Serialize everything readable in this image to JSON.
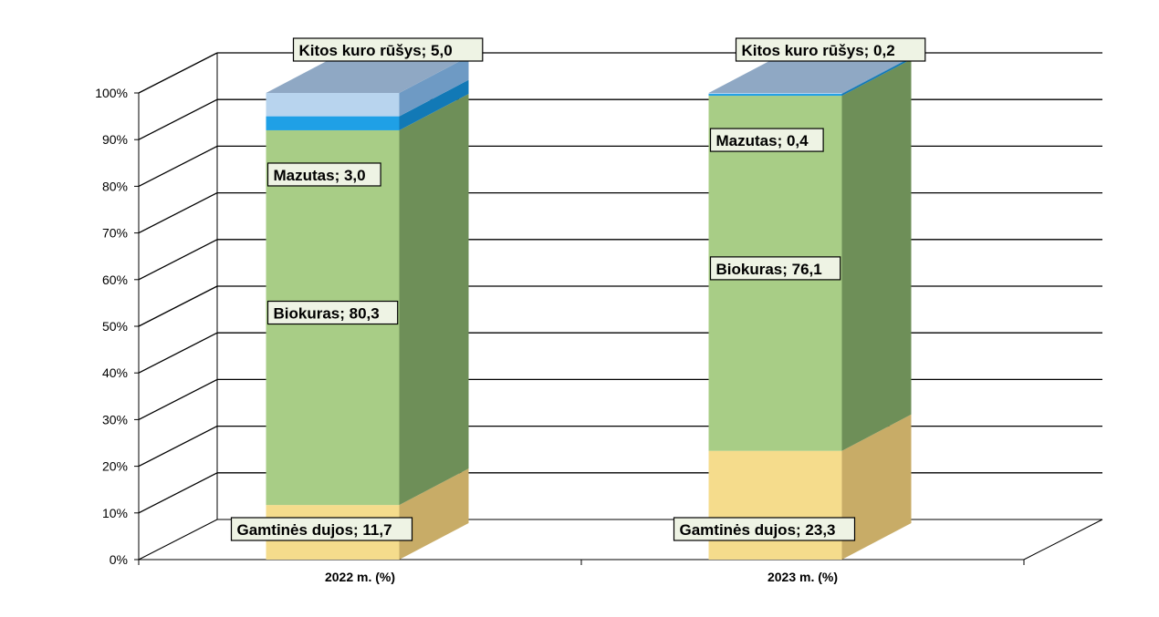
{
  "chart_data": {
    "type": "bar",
    "stacked": true,
    "three_d": true,
    "categories": [
      "2022 m.  (%)",
      "2023 m. (%)"
    ],
    "series": [
      {
        "name": "Gamtinės dujos",
        "values": [
          11.7,
          23.3
        ],
        "color": "#f5dc8c",
        "side_color": "#c8ac67"
      },
      {
        "name": "Biokuras",
        "values": [
          80.3,
          76.1
        ],
        "color": "#a8cd86",
        "side_color": "#6e8f58"
      },
      {
        "name": "Mazutas",
        "values": [
          3.0,
          0.4
        ],
        "color": "#1fa0e6",
        "side_color": "#1279b6"
      },
      {
        "name": "Kitos kuro rūšys",
        "values": [
          5.0,
          0.2
        ],
        "color": "#b8d4ee",
        "side_color": "#6e9ac4"
      }
    ],
    "data_labels": [
      [
        "Gamtinės dujos; 11,7",
        "Biokuras; 80,3",
        "Mazutas; 3,0",
        "Kitos kuro rūšys; 5,0"
      ],
      [
        "Gamtinės dujos; 23,3",
        "Biokuras; 76,1",
        "Mazutas; 0,4",
        "Kitos kuro rūšys; 0,2"
      ]
    ],
    "y_ticks": [
      "0%",
      "10%",
      "20%",
      "30%",
      "40%",
      "50%",
      "60%",
      "70%",
      "80%",
      "90%",
      "100%"
    ],
    "ylim": [
      0,
      100
    ],
    "grid": true,
    "legend": "none"
  }
}
